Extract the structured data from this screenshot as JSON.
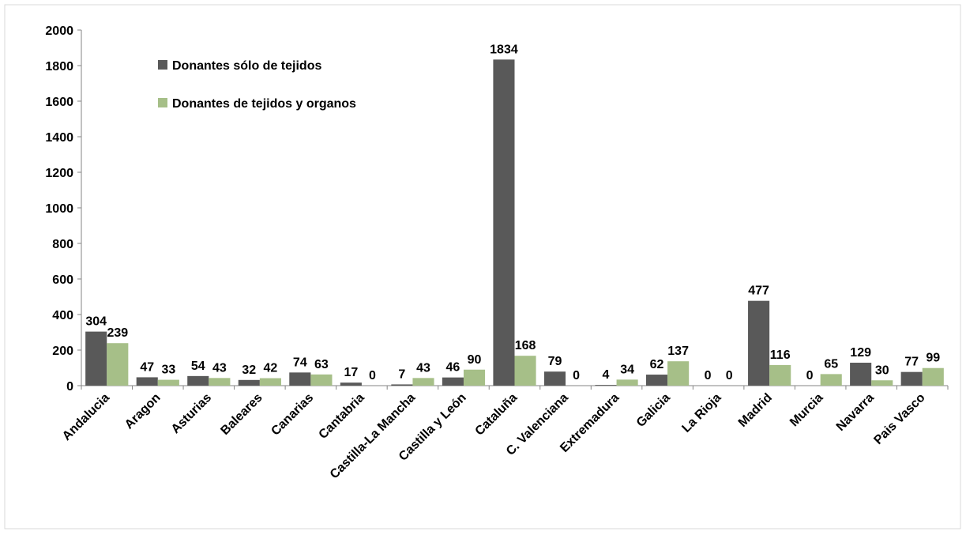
{
  "chart_data": {
    "type": "bar",
    "categories": [
      "Andalucia",
      "Aragon",
      "Asturias",
      "Baleares",
      "Canarias",
      "Cantabria",
      "Castilla-La Mancha",
      "Castilla y León",
      "Cataluña",
      "C. Valenciana",
      "Extremadura",
      "Galicia",
      "La Rioja",
      "Madrid",
      "Murcia",
      "Navarra",
      "Pais Vasco"
    ],
    "series": [
      {
        "name": "Donantes sólo de tejidos",
        "color": "#595959",
        "values": [
          304,
          47,
          54,
          32,
          74,
          17,
          7,
          46,
          1834,
          79,
          4,
          62,
          0,
          477,
          0,
          129,
          77
        ]
      },
      {
        "name": "Donantes de tejidos y organos",
        "color": "#a6bf88",
        "values": [
          239,
          33,
          43,
          42,
          63,
          0,
          43,
          90,
          168,
          0,
          34,
          137,
          0,
          116,
          65,
          30,
          99
        ]
      }
    ],
    "ylim": [
      0,
      2000
    ],
    "yticks": [
      0,
      200,
      400,
      600,
      800,
      1000,
      1200,
      1400,
      1600,
      1800,
      2000
    ],
    "legend": "top-left",
    "grid": false
  }
}
